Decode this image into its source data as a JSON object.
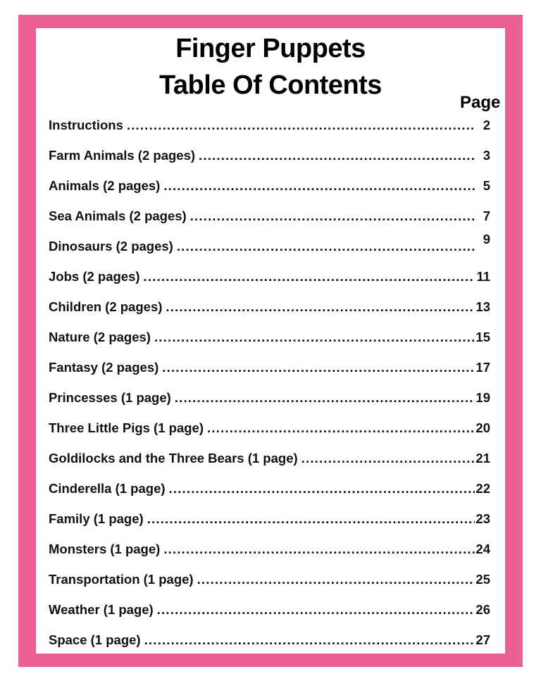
{
  "title_line1": "Finger Puppets",
  "title_line2": "Table Of Contents",
  "page_header": "Page",
  "border_color": "#ec6194",
  "entries": [
    {
      "label": "Instructions",
      "page": "2"
    },
    {
      "label": "Farm Animals (2 pages)",
      "page": "3"
    },
    {
      "label": "Animals (2 pages)",
      "page": "5"
    },
    {
      "label": "Sea Animals (2 pages)",
      "page": "7"
    },
    {
      "label": "Dinosaurs (2 pages)",
      "page": "9"
    },
    {
      "label": "Jobs (2 pages)",
      "page": "11"
    },
    {
      "label": "Children (2 pages)",
      "page": "13"
    },
    {
      "label": "Nature (2 pages)",
      "page": "15"
    },
    {
      "label": "Fantasy (2 pages)",
      "page": "17"
    },
    {
      "label": "Princesses (1 page)",
      "page": "19"
    },
    {
      "label": "Three Little Pigs (1 page)",
      "page": "20"
    },
    {
      "label": "Goldilocks and the Three Bears (1 page)",
      "page": "21"
    },
    {
      "label": "Cinderella (1 page)",
      "page": "22"
    },
    {
      "label": "Family (1 page)",
      "page": "23"
    },
    {
      "label": "Monsters (1 page)",
      "page": "24"
    },
    {
      "label": "Transportation (1 page)",
      "page": "25"
    },
    {
      "label": "Weather (1 page)",
      "page": "26"
    },
    {
      "label": "Space (1 page)",
      "page": "27"
    }
  ]
}
